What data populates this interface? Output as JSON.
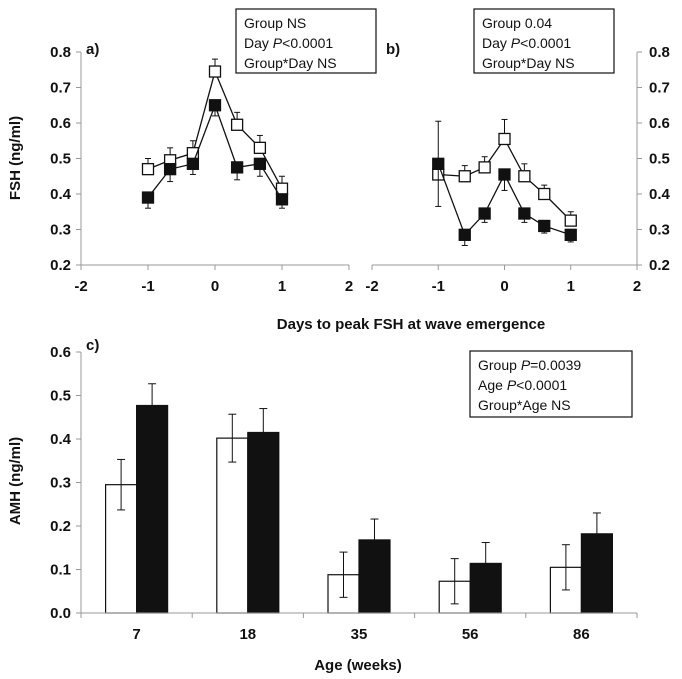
{
  "chart_data": [
    {
      "type": "line",
      "panel_label": "a)",
      "ylabel": "FSH (ng/ml)",
      "xlim": [
        -2,
        2
      ],
      "ylim": [
        0.2,
        0.8
      ],
      "x_ticks": [
        "-2",
        "-1",
        "0",
        "1",
        "2"
      ],
      "y_ticks": [
        "0.2",
        "0.3",
        "0.4",
        "0.5",
        "0.6",
        "0.7",
        "0.8"
      ],
      "y_axis_side": "left",
      "legend_position": "top-right",
      "stats": [
        {
          "label": "Group",
          "italic": "",
          "value": "NS"
        },
        {
          "label": "Day",
          "italic": "P",
          "value": "<0.0001"
        },
        {
          "label": "Group*Day",
          "italic": "",
          "value": "NS"
        }
      ],
      "series": [
        {
          "marker": "open-square",
          "x": [
            -1,
            -0.67,
            -0.33,
            0,
            0.33,
            0.67,
            1
          ],
          "y": [
            0.47,
            0.495,
            0.515,
            0.745,
            0.595,
            0.53,
            0.415
          ],
          "err": [
            0.03,
            0.035,
            0.035,
            0.035,
            0.035,
            0.035,
            0.035
          ]
        },
        {
          "marker": "filled-square",
          "x": [
            -1,
            -0.67,
            -0.33,
            0,
            0.33,
            0.67,
            1
          ],
          "y": [
            0.39,
            0.47,
            0.485,
            0.65,
            0.475,
            0.485,
            0.385
          ],
          "err": [
            0.03,
            0.035,
            0.03,
            0.03,
            0.035,
            0.035,
            0.025
          ]
        }
      ]
    },
    {
      "type": "line",
      "panel_label": "b)",
      "xlim": [
        -2,
        2
      ],
      "ylim": [
        0.2,
        0.8
      ],
      "x_ticks": [
        "-2",
        "-1",
        "0",
        "1",
        "2"
      ],
      "y_ticks": [
        "0.2",
        "0.3",
        "0.4",
        "0.5",
        "0.6",
        "0.7",
        "0.8"
      ],
      "y_axis_side": "right",
      "legend_position": "top-right",
      "stats": [
        {
          "label": "Group",
          "italic": "",
          "value": "0.04"
        },
        {
          "label": "Day",
          "italic": "P",
          "value": "<0.0001"
        },
        {
          "label": "Group*Day",
          "italic": "",
          "value": "NS"
        }
      ],
      "series": [
        {
          "marker": "open-square",
          "x": [
            -1,
            -0.6,
            -0.3,
            0,
            0.3,
            0.6,
            1
          ],
          "y": [
            0.455,
            0.45,
            0.475,
            0.555,
            0.45,
            0.4,
            0.325
          ],
          "err": [
            0.15,
            0.03,
            0.03,
            0.055,
            0.035,
            0.025,
            0.025
          ]
        },
        {
          "marker": "filled-square",
          "x": [
            -1,
            -0.6,
            -0.3,
            0,
            0.3,
            0.6,
            1
          ],
          "y": [
            0.485,
            0.285,
            0.345,
            0.455,
            0.345,
            0.31,
            0.285
          ],
          "err": [
            0.12,
            0.03,
            0.025,
            0.045,
            0.025,
            0.02,
            0.02
          ]
        }
      ]
    },
    {
      "type": "bar",
      "panel_label": "c)",
      "xlabel": "Age (weeks)",
      "ylabel": "AMH (ng/ml)",
      "ylim": [
        0.0,
        0.6
      ],
      "y_ticks": [
        "0.0",
        "0.1",
        "0.2",
        "0.3",
        "0.4",
        "0.5",
        "0.6"
      ],
      "categories": [
        "7",
        "18",
        "35",
        "56",
        "86"
      ],
      "legend_position": "top-right",
      "stats": [
        {
          "label": "Group",
          "italic": "P",
          "value": "=0.0039"
        },
        {
          "label": "Age",
          "italic": "P",
          "value": "<0.0001"
        },
        {
          "label": "Group*Age",
          "italic": "",
          "value": "NS"
        }
      ],
      "series": [
        {
          "fill": "open",
          "values": [
            0.295,
            0.402,
            0.088,
            0.073,
            0.105
          ],
          "err": [
            0.058,
            0.055,
            0.052,
            0.052,
            0.052
          ]
        },
        {
          "fill": "filled",
          "values": [
            0.477,
            0.415,
            0.168,
            0.114,
            0.182
          ],
          "err": [
            0.05,
            0.055,
            0.048,
            0.048,
            0.048
          ]
        }
      ]
    }
  ],
  "shared_xlabel": "Days to peak FSH at wave emergence"
}
